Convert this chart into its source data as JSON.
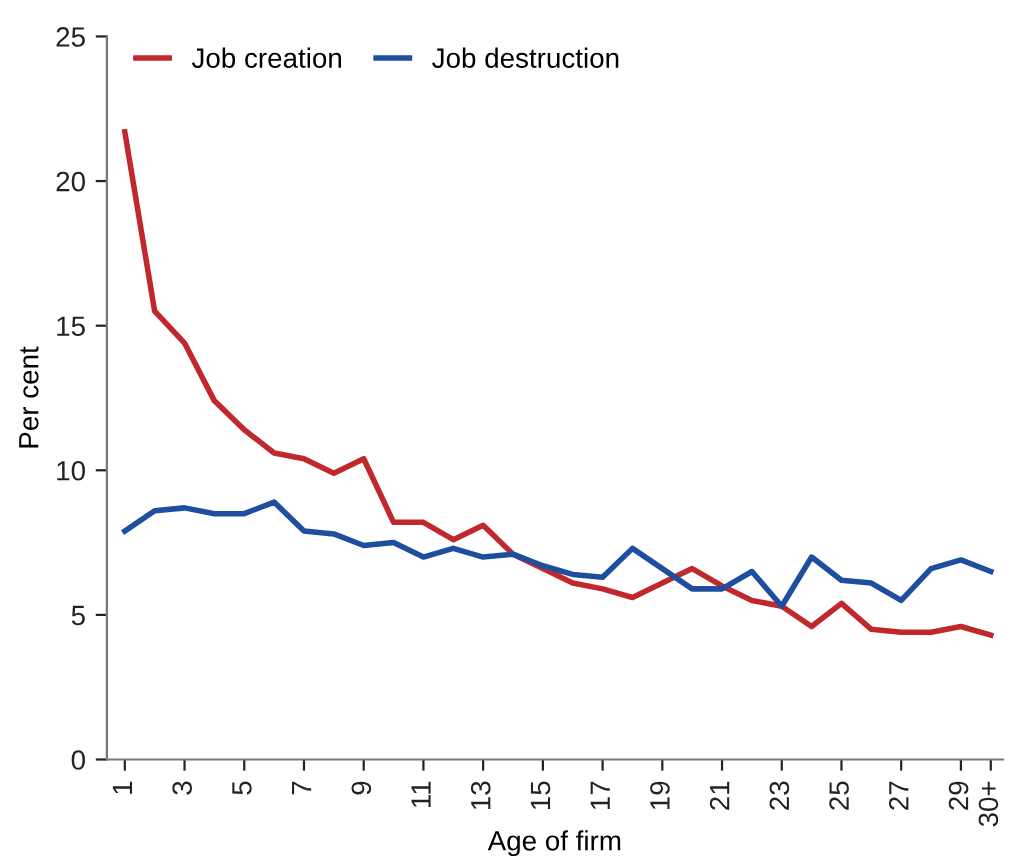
{
  "chart_data": {
    "type": "line",
    "xlabel": "Age of firm",
    "ylabel": "Per cent",
    "categories": [
      "1",
      null,
      "3",
      null,
      "5",
      null,
      "7",
      null,
      "9",
      null,
      "11",
      null,
      "13",
      null,
      "15",
      null,
      "17",
      null,
      "19",
      null,
      "21",
      null,
      "23",
      null,
      "25",
      null,
      "27",
      null,
      "29",
      "30+"
    ],
    "series": [
      {
        "name": "Job creation",
        "color": "#c0282d",
        "values": [
          21.7,
          15.5,
          14.4,
          12.4,
          11.4,
          10.6,
          10.4,
          9.9,
          10.4,
          8.2,
          8.2,
          7.6,
          8.1,
          7.1,
          6.6,
          6.1,
          5.9,
          5.6,
          6.1,
          6.6,
          6.0,
          5.5,
          5.3,
          4.6,
          5.4,
          4.5,
          4.4,
          4.4,
          4.6,
          4.3
        ]
      },
      {
        "name": "Job destruction",
        "color": "#1f4e9e",
        "values": [
          7.9,
          8.6,
          8.7,
          8.5,
          8.5,
          8.9,
          7.9,
          7.8,
          7.4,
          7.5,
          7.0,
          7.3,
          7.0,
          7.1,
          6.7,
          6.4,
          6.3,
          7.3,
          6.6,
          5.9,
          5.9,
          6.5,
          5.3,
          7.0,
          6.2,
          6.1,
          5.5,
          6.6,
          6.9,
          6.5
        ]
      }
    ],
    "ylim": [
      0,
      25
    ],
    "yticks": [
      0,
      5,
      10,
      15,
      20,
      25
    ],
    "grid": false,
    "legend": "top left"
  }
}
